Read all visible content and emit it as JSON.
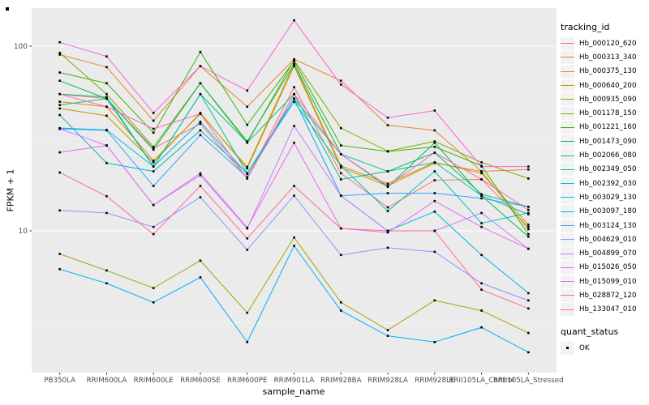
{
  "y_axis": {
    "label": "FPKM + 1",
    "ticks": [
      {
        "label": "100",
        "value": 100
      },
      {
        "label": "10",
        "value": 10
      }
    ]
  },
  "x_axis": {
    "label": "sample_name"
  },
  "legend": {
    "tracking_title": "tracking_id",
    "quant_title": "quant_status",
    "quant_value": "OK"
  },
  "colors": {
    "panel_background": "#EBEBEB",
    "gridline": "#FFFFFF",
    "tick_label": "#4D4D4D",
    "tick_mark": "#333333",
    "point": "#000000",
    "legend_key_background": "#F2F2F2"
  },
  "chart_data": {
    "type": "line",
    "title": "",
    "xlabel": "sample_name",
    "ylabel": "FPKM + 1",
    "y_scale": "log10",
    "ylim": [
      1.7,
      165
    ],
    "y_major_gridlines": [
      100,
      10
    ],
    "y_minor_gridlines": [
      31.62,
      3.162
    ],
    "legend_position": "right",
    "point_shape": "filled-square-black",
    "x_categories": [
      "PB350LA",
      "RRIM600LA",
      "RRIM600LE",
      "RRIM600SE",
      "RRIM600PE",
      "RRIM901LA",
      "RRIM928BA",
      "RRIM928LA",
      "RRIM928LE",
      "RRII105LA_Control",
      "RRII105LA_Stressed"
    ],
    "series": [
      {
        "name": "Hb_000120_620",
        "color": "#F8766D",
        "values": [
          55,
          52,
          28,
          38,
          19.2,
          60,
          20.5,
          13.4,
          18.8,
          19,
          10.5
        ]
      },
      {
        "name": "Hb_000313_340",
        "color": "#EA8331",
        "values": [
          90,
          77,
          39.5,
          78,
          47,
          85,
          65,
          37.3,
          35,
          21,
          21.5
        ]
      },
      {
        "name": "Hb_000375_130",
        "color": "#D89000",
        "values": [
          50,
          47,
          24,
          43,
          22.2,
          80,
          22.5,
          18,
          23.5,
          20.5,
          10.8
        ]
      },
      {
        "name": "Hb_000640_200",
        "color": "#C09B00",
        "values": [
          46,
          42,
          23.5,
          43.5,
          21.8,
          78,
          22,
          17.5,
          23.3,
          21,
          10.2
        ]
      },
      {
        "name": "Hb_000935_090",
        "color": "#A3A500",
        "values": [
          7.5,
          6.1,
          4.9,
          6.9,
          3.6,
          9.2,
          4.1,
          2.9,
          4.2,
          3.7,
          2.8
        ]
      },
      {
        "name": "Hb_001178_150",
        "color": "#7CAE00",
        "values": [
          92,
          55,
          28.5,
          63,
          30,
          84,
          36,
          27,
          30.5,
          23.5,
          19.2
        ]
      },
      {
        "name": "Hb_001221_160",
        "color": "#39B600",
        "values": [
          72,
          63,
          34,
          93,
          37.5,
          83,
          29,
          26.9,
          28.5,
          22.5,
          9.6
        ]
      },
      {
        "name": "Hb_001473_090",
        "color": "#00BB4E",
        "values": [
          65,
          52,
          27.5,
          63,
          30.5,
          80,
          26,
          17.3,
          30,
          15.5,
          9.3
        ]
      },
      {
        "name": "Hb_002066_080",
        "color": "#00BF7D",
        "values": [
          55,
          53,
          22.3,
          55,
          30,
          55,
          19,
          21,
          26.5,
          15.8,
          13.5
        ]
      },
      {
        "name": "Hb_002349_050",
        "color": "#00C1A3",
        "values": [
          48,
          52,
          22.3,
          55,
          20.5,
          52,
          26,
          21,
          23.5,
          15.5,
          12.3
        ]
      },
      {
        "name": "Hb_002392_030",
        "color": "#00BFC4",
        "values": [
          42.4,
          23.3,
          21,
          35,
          20.5,
          50,
          22.5,
          12.8,
          21,
          11,
          12.5
        ]
      },
      {
        "name": "Hb_003029_130",
        "color": "#00BAE0",
        "values": [
          36,
          35.2,
          22.3,
          39,
          20.3,
          52,
          15.5,
          10,
          12.7,
          7.4,
          4.6
        ]
      },
      {
        "name": "Hb_003097_180",
        "color": "#00B0F6",
        "values": [
          6.2,
          5.2,
          4.1,
          5.6,
          2.5,
          8.3,
          3.7,
          2.7,
          2.5,
          3.0,
          2.2
        ]
      },
      {
        "name": "Hb_003124_130",
        "color": "#35A2FF",
        "values": [
          35.7,
          35,
          17.5,
          33,
          19.5,
          52,
          15.5,
          16,
          16,
          15,
          13.5
        ]
      },
      {
        "name": "Hb_004629_010",
        "color": "#9590FF",
        "values": [
          12.9,
          12.5,
          10.5,
          15.2,
          7.9,
          15.5,
          7.4,
          8.1,
          7.7,
          5.2,
          4.2
        ]
      },
      {
        "name": "Hb_004899_070",
        "color": "#C77CFF",
        "values": [
          35.7,
          29,
          13.8,
          20,
          10.3,
          37,
          15.5,
          10,
          10,
          12.5,
          8.0
        ]
      },
      {
        "name": "Hb_015026_050",
        "color": "#E76BF3",
        "values": [
          26.6,
          29,
          13.8,
          20.5,
          10.4,
          30,
          10.3,
          9.8,
          14.5,
          10.5,
          8.0
        ]
      },
      {
        "name": "Hb_015099_010",
        "color": "#FA62DB",
        "values": [
          105,
          88,
          43.5,
          78,
          57.5,
          138,
          62,
          41,
          44.8,
          22.3,
          22.3
        ]
      },
      {
        "name": "Hb_028872_120",
        "color": "#FF62BC",
        "values": [
          55,
          47,
          35.7,
          43,
          19.2,
          55,
          26,
          17.5,
          26.5,
          19,
          13
        ]
      },
      {
        "name": "Hb_133047_010",
        "color": "#FF6A98",
        "values": [
          20.7,
          15.4,
          9.6,
          17.5,
          9.1,
          17.5,
          10.3,
          10,
          10,
          4.8,
          3.8
        ]
      }
    ]
  }
}
